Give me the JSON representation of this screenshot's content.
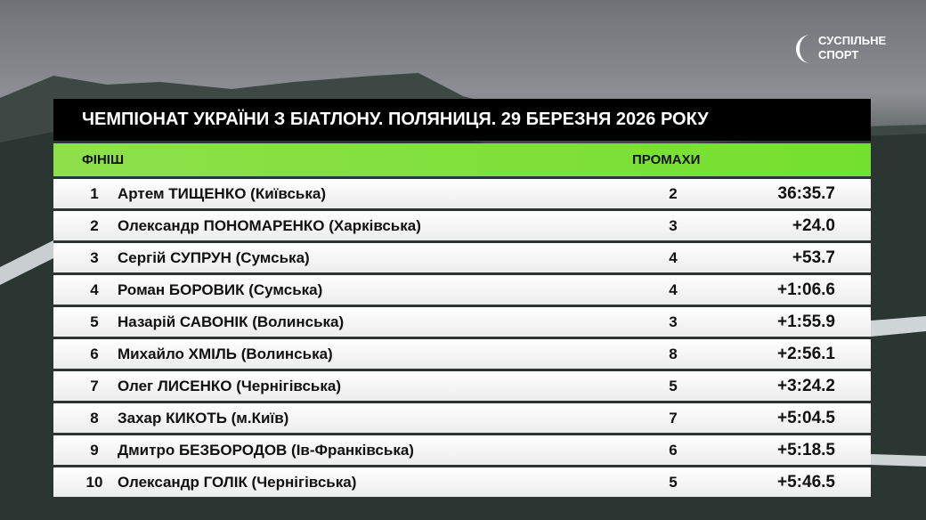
{
  "logo": {
    "line1": "СУСПІЛЬНЕ",
    "line2": "СПОРТ"
  },
  "title": "ЧЕМПІОНАТ УКРАЇНИ З БІАТЛОНУ. ПОЛЯНИЦЯ. 29 БЕРЕЗНЯ 2026 РОКУ",
  "header": {
    "finish": "ФІНІШ",
    "misses": "ПРОМАХИ"
  },
  "rows": [
    {
      "rank": 1,
      "name": "Артем ТИЩЕНКО (Київська)",
      "misses": 2,
      "time": "36:35.7"
    },
    {
      "rank": 2,
      "name": "Олександр ПОНОМАРЕНКО (Харківська)",
      "misses": 3,
      "time": "+24.0"
    },
    {
      "rank": 3,
      "name": "Сергій СУПРУН (Сумська)",
      "misses": 4,
      "time": "+53.7"
    },
    {
      "rank": 4,
      "name": "Роман БОРОВИК (Сумська)",
      "misses": 4,
      "time": "+1:06.6"
    },
    {
      "rank": 5,
      "name": "Назарій САВОНІК (Волинська)",
      "misses": 3,
      "time": "+1:55.9"
    },
    {
      "rank": 6,
      "name": "Михайло ХМІЛЬ (Волинська)",
      "misses": 8,
      "time": "+2:56.1"
    },
    {
      "rank": 7,
      "name": "Олег ЛИСЕНКО (Чернігівська)",
      "misses": 5,
      "time": "+3:24.2"
    },
    {
      "rank": 8,
      "name": "Захар КИКОТЬ (м.Київ)",
      "misses": 7,
      "time": "+5:04.5"
    },
    {
      "rank": 9,
      "name": "Дмитро БЕЗБОРОДОВ (Ів-Франківська)",
      "misses": 6,
      "time": "+5:18.5"
    },
    {
      "rank": 10,
      "name": "Олександр ГОЛІК (Чернігівська)",
      "misses": 5,
      "time": "+5:46.5"
    }
  ]
}
